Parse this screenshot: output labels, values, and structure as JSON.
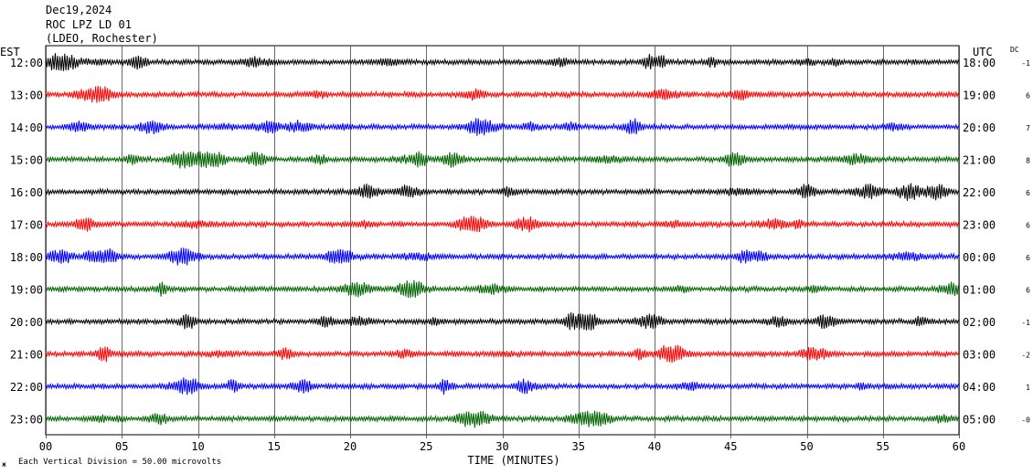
{
  "header": {
    "date": "Dec19,2024",
    "station": "ROC LPZ LD 01",
    "network": "(LDEO, Rochester)"
  },
  "left_zone_label": "EST",
  "right_zone_label": "UTC",
  "dc_label": "DC",
  "footer": {
    "scale_note": "Each Vertical Division =   50.00 microvolts",
    "corner_mark": "ж"
  },
  "colors": {
    "trace_cycle": [
      "#000000",
      "#ff0000",
      "#0000ff",
      "#006400"
    ],
    "grid": "#000000",
    "background": "#ffffff"
  },
  "chart_data": {
    "type": "line",
    "title": "",
    "xlabel": "TIME (MINUTES)",
    "ylabel": "",
    "xlim": [
      0,
      60
    ],
    "x_ticks": [
      "00",
      "05",
      "10",
      "15",
      "20",
      "25",
      "30",
      "35",
      "40",
      "45",
      "50",
      "55",
      "60"
    ],
    "series": [
      {
        "est": "12:00",
        "utc": "18:00",
        "dc": "-1"
      },
      {
        "est": "13:00",
        "utc": "19:00",
        "dc": "6"
      },
      {
        "est": "14:00",
        "utc": "20:00",
        "dc": "7"
      },
      {
        "est": "15:00",
        "utc": "21:00",
        "dc": "8"
      },
      {
        "est": "16:00",
        "utc": "22:00",
        "dc": "6"
      },
      {
        "est": "17:00",
        "utc": "23:00",
        "dc": "6"
      },
      {
        "est": "18:00",
        "utc": "00:00",
        "dc": "6"
      },
      {
        "est": "19:00",
        "utc": "01:00",
        "dc": "6"
      },
      {
        "est": "20:00",
        "utc": "02:00",
        "dc": "-1"
      },
      {
        "est": "21:00",
        "utc": "03:00",
        "dc": "-2"
      },
      {
        "est": "22:00",
        "utc": "04:00",
        "dc": "1"
      },
      {
        "est": "23:00",
        "utc": "05:00",
        "dc": "-0"
      }
    ]
  }
}
